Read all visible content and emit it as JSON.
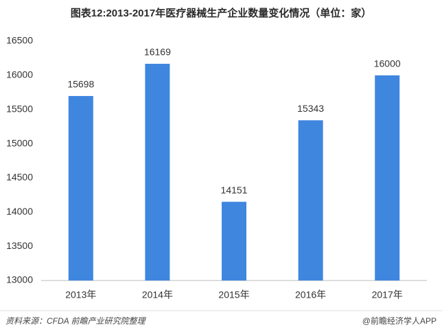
{
  "chart_data": {
    "type": "bar",
    "title": "图表12:2013-2017年医疗器械生产企业数量变化情况（单位：家）",
    "categories": [
      "2013年",
      "2014年",
      "2015年",
      "2016年",
      "2017年"
    ],
    "values": [
      15698,
      16169,
      14151,
      15343,
      16000
    ],
    "color": "#3f86df",
    "ylim": [
      13000,
      16500
    ],
    "yticks": [
      13000,
      13500,
      14000,
      14500,
      15000,
      15500,
      16000,
      16500
    ],
    "grid": false,
    "source": "资料来源：CFDA  前瞻产业研究院整理",
    "credit": "@前瞻经济学人APP"
  }
}
